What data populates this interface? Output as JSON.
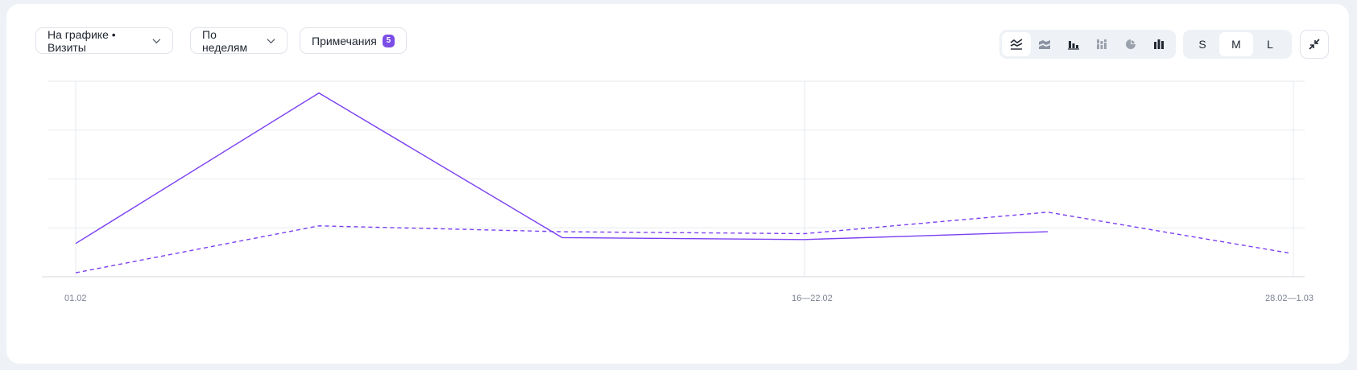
{
  "toolbar": {
    "chart_metric_label": "На графике • Визиты",
    "grouping_label": "По неделям",
    "notes_label": "Примечания",
    "notes_count": "5",
    "chart_types": [
      "line-chart-icon",
      "stacked-area-icon",
      "bar-chart-icon",
      "stacked-bar-icon",
      "pie-chart-icon",
      "column-chart-icon"
    ],
    "active_chart_type": "line-chart-icon",
    "sizes": [
      "S",
      "M",
      "L"
    ],
    "active_size": "M",
    "collapse_icon": "collapse-icon",
    "accent_color": "#7b4de6"
  },
  "chart_data": {
    "type": "line",
    "x_tick_labels": [
      "01.02",
      "16—22.02",
      "28.02—1.03"
    ],
    "series": [
      {
        "style": "solid",
        "color": "#7b3ff2",
        "values": [
          0.17,
          0.94,
          0.2,
          0.19,
          0.23
        ]
      },
      {
        "style": "dashed",
        "color": "#7b3ff2",
        "values": [
          0.02,
          0.26,
          0.23,
          0.22,
          0.33,
          0.12
        ]
      }
    ],
    "ylim": [
      0,
      1
    ],
    "grid": true
  }
}
